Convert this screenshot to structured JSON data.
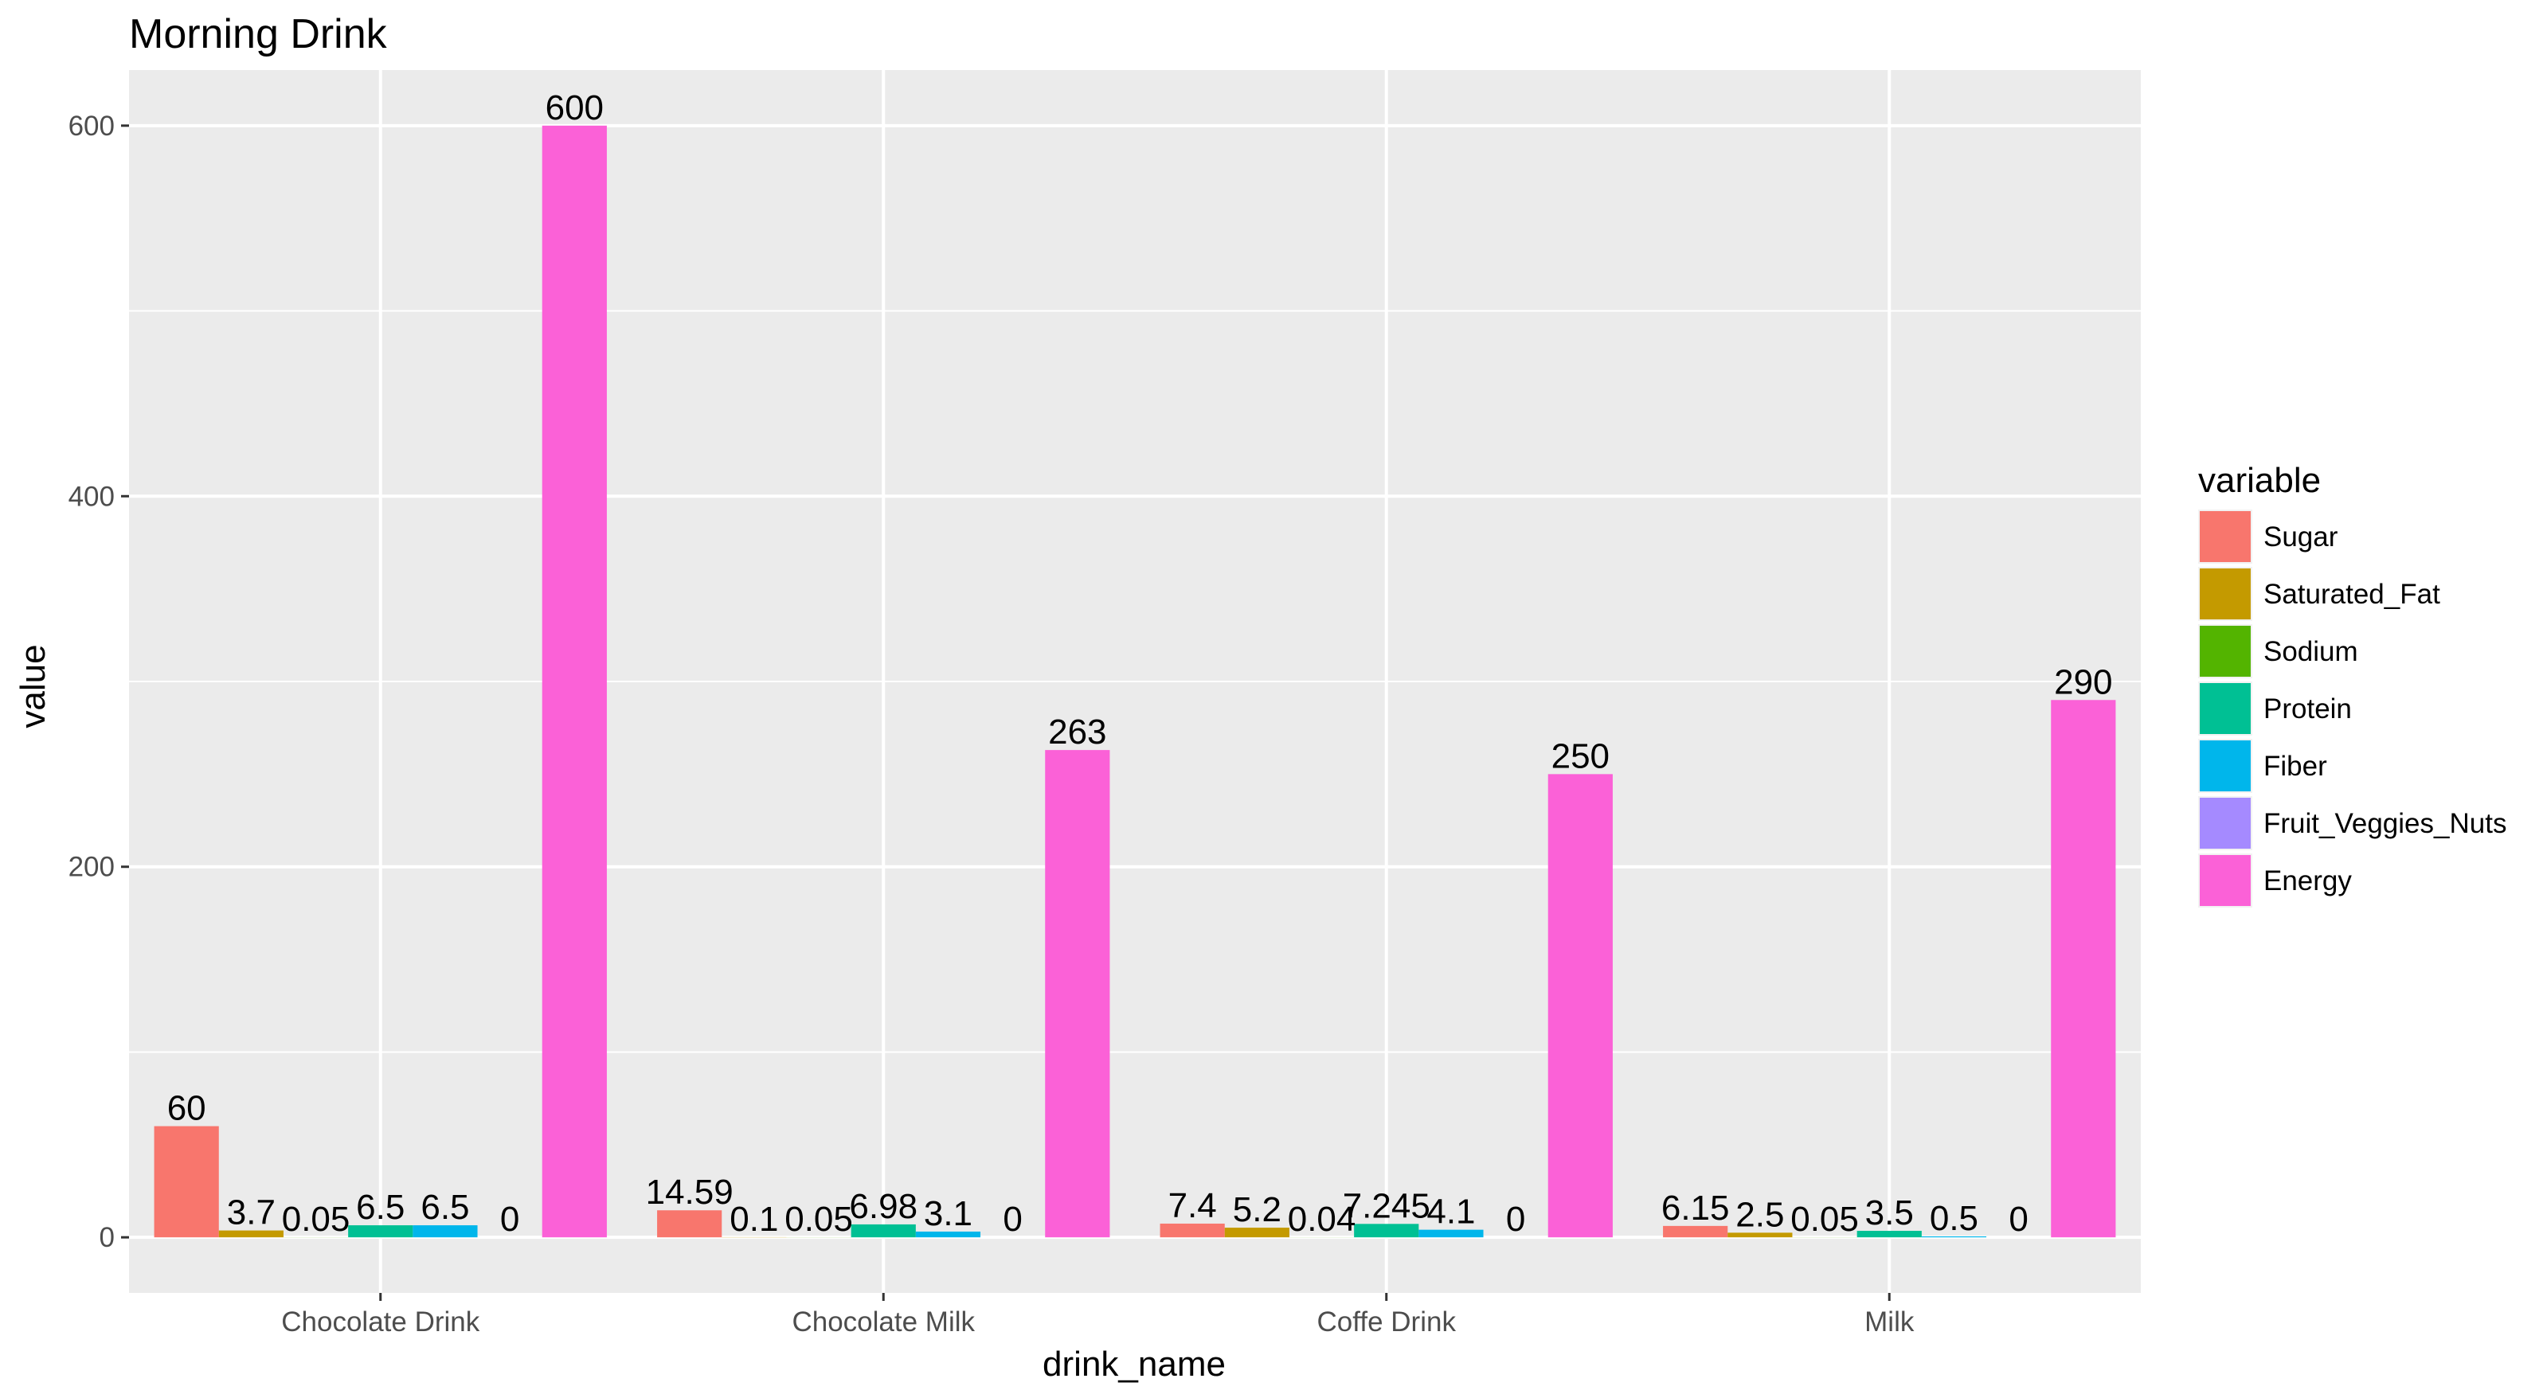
{
  "chart_data": {
    "type": "bar",
    "title": "Morning Drink",
    "xlabel": "drink_name",
    "ylabel": "value",
    "categories": [
      "Chocolate Drink",
      "Chocolate Milk",
      "Coffe Drink",
      "Milk"
    ],
    "ylim": [
      -30,
      630
    ],
    "yticks": [
      0,
      200,
      400,
      600
    ],
    "grid": true,
    "legend": {
      "title": "variable",
      "position": "right"
    },
    "series": [
      {
        "name": "Sugar",
        "color": "#F8766D",
        "values": [
          60,
          14.59,
          7.4,
          6.15
        ],
        "labels": [
          "60",
          "14.59",
          "7.4",
          "6.15"
        ]
      },
      {
        "name": "Saturated_Fat",
        "color": "#C49A00",
        "values": [
          3.7,
          0.1,
          5.2,
          2.5
        ],
        "labels": [
          "3.7",
          "0.1",
          "5.2",
          "2.5"
        ]
      },
      {
        "name": "Sodium",
        "color": "#53B400",
        "values": [
          0.05,
          0.05,
          0.04,
          0.05
        ],
        "labels": [
          "0.05",
          "0.05",
          "0.04",
          "0.05"
        ]
      },
      {
        "name": "Protein",
        "color": "#00C094",
        "values": [
          6.5,
          6.98,
          7.245,
          3.5
        ],
        "labels": [
          "6.5",
          "6.98",
          "7.245",
          "3.5"
        ]
      },
      {
        "name": "Fiber",
        "color": "#00B6EB",
        "values": [
          6.5,
          3.1,
          4.1,
          0.5
        ],
        "labels": [
          "6.5",
          "3.1",
          "4.1",
          "0.5"
        ]
      },
      {
        "name": "Fruit_Veggies_Nuts",
        "color": "#A58AFF",
        "values": [
          0,
          0,
          0,
          0
        ],
        "labels": [
          "0",
          "0",
          "0",
          "0"
        ]
      },
      {
        "name": "Energy",
        "color": "#FB61D7",
        "values": [
          600,
          263,
          250,
          290
        ],
        "labels": [
          "600",
          "263",
          "250",
          "290"
        ]
      }
    ]
  }
}
